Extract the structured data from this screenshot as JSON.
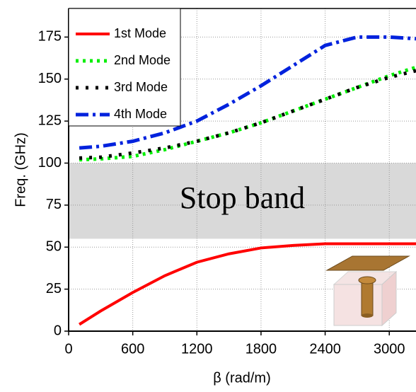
{
  "chart_data": {
    "type": "line",
    "xlabel": "β (rad/m)",
    "ylabel": "Freq. (GHz)",
    "xlim": [
      0,
      3250
    ],
    "ylim": [
      0,
      192
    ],
    "xticks": [
      0,
      600,
      1200,
      1800,
      2400,
      3000
    ],
    "yticks": [
      0,
      25,
      50,
      75,
      100,
      125,
      150,
      175
    ],
    "grid": true,
    "legend": "upper left",
    "stop_band": {
      "label": "Stop band",
      "range": [
        55,
        100
      ],
      "color": "#d9d9d9"
    },
    "x": [
      100,
      300,
      600,
      900,
      1200,
      1500,
      1800,
      2100,
      2400,
      2700,
      3000,
      3250
    ],
    "series": [
      {
        "name": "1st Mode",
        "color": "#ff0000",
        "style": "solid",
        "values": [
          4,
          12,
          23,
          33,
          41,
          46,
          49.5,
          51,
          52,
          52,
          52,
          52
        ]
      },
      {
        "name": "2nd Mode",
        "color": "#00ee00",
        "style": "dot",
        "values": [
          102,
          102.5,
          104,
          108,
          113,
          118,
          124,
          131,
          138,
          145,
          152,
          157
        ]
      },
      {
        "name": "3rd Mode",
        "color": "#000000",
        "style": "dot2",
        "values": [
          103,
          103.5,
          106,
          109,
          113,
          118,
          124,
          131,
          138,
          145,
          151,
          155
        ]
      },
      {
        "name": "4th Mode",
        "color": "#0022dd",
        "style": "dashdot",
        "values": [
          109,
          110,
          113,
          118,
          125,
          135,
          146,
          158,
          170,
          175,
          175,
          174
        ]
      }
    ]
  }
}
